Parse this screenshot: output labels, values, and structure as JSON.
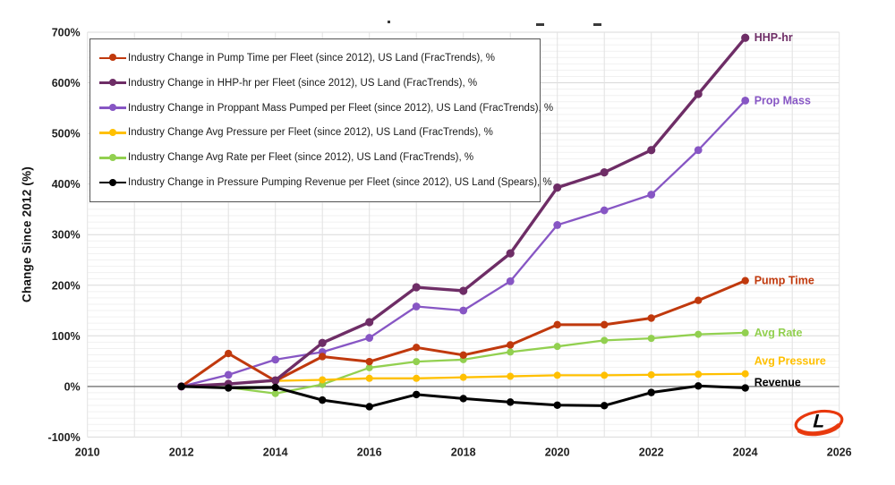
{
  "y_axis": {
    "title": "Change Since 2012 (%)",
    "tick_labels": [
      "700%",
      "600%",
      "500%",
      "400%",
      "300%",
      "200%",
      "100%",
      "0%",
      "-100%"
    ],
    "min": -100,
    "max": 700,
    "major_step": 100
  },
  "x_axis": {
    "tick_labels": [
      "2010",
      "2012",
      "2014",
      "2016",
      "2018",
      "2020",
      "2022",
      "2024",
      "2026"
    ],
    "min": 2010,
    "max": 2026,
    "major_step": 2
  },
  "chart_data": {
    "type": "line",
    "title": "",
    "xlabel": "",
    "ylabel": "Change Since 2012 (%)",
    "xlim": [
      2010,
      2026
    ],
    "ylim": [
      -100,
      700
    ],
    "grid": "on",
    "legend_position": "top-left",
    "x": [
      2012,
      2013,
      2014,
      2015,
      2016,
      2017,
      2018,
      2019,
      2020,
      2021,
      2022,
      2023,
      2024
    ],
    "series": [
      {
        "name": "Pump Time",
        "legend_label": "Industry Change in Pump Time per Fleet (since 2012), US Land (FracTrends), %",
        "end_label": "Pump Time",
        "color": "#C0390D",
        "values": [
          0,
          65,
          11,
          59,
          49,
          77,
          62,
          82,
          122,
          122,
          135,
          170,
          209
        ]
      },
      {
        "name": "HHP-hr",
        "legend_label": "Industry Change in HHP-hr per Fleet (since 2012), US Land (FracTrends), %",
        "end_label": "HHP-hr",
        "color": "#6E2D66",
        "values": [
          0,
          5,
          12,
          86,
          127,
          196,
          189,
          263,
          393,
          423,
          467,
          578,
          689
        ]
      },
      {
        "name": "Prop Mass",
        "legend_label": "Industry Change in Proppant Mass Pumped per Fleet (since 2012), US Land (FracTrends), %",
        "end_label": "Prop Mass",
        "color": "#8756C4",
        "values": [
          0,
          23,
          53,
          68,
          96,
          158,
          150,
          208,
          319,
          348,
          379,
          467,
          565
        ]
      },
      {
        "name": "Avg Pressure",
        "legend_label": "Industry Change Avg Pressure per Fleet (since 2012), US Land (FracTrends), %",
        "end_label": "Avg Pressure",
        "color": "#FFC000",
        "values": [
          0,
          5,
          11,
          13,
          16,
          16,
          18,
          20,
          22,
          22,
          23,
          24,
          25
        ]
      },
      {
        "name": "Avg Rate",
        "legend_label": "Industry Change Avg Rate per Fleet (since 2012), US Land (FracTrends), %",
        "end_label": "Avg Rate",
        "color": "#92D050",
        "values": [
          0,
          -2,
          -14,
          4,
          37,
          49,
          53,
          68,
          79,
          91,
          95,
          103,
          106
        ]
      },
      {
        "name": "Revenue",
        "legend_label": "Industry Change in Pressure Pumping Revenue per Fleet (since 2012), US Land (Spears), %",
        "end_label": "Revenue",
        "color": "#000000",
        "values": [
          0,
          -3,
          -2,
          -27,
          -40,
          -16,
          -24,
          -31,
          -37,
          -38,
          -12,
          1,
          -3
        ]
      }
    ]
  },
  "logo": {
    "letter": "L",
    "ring_color": "#E8380D"
  },
  "colors": {
    "grid_major": "#D9D9D9",
    "grid_minor": "#F1F1F1",
    "grid_vertical": "#E2E2E2",
    "zero_line": "#808080",
    "tick_text": "#1f1f1f"
  }
}
